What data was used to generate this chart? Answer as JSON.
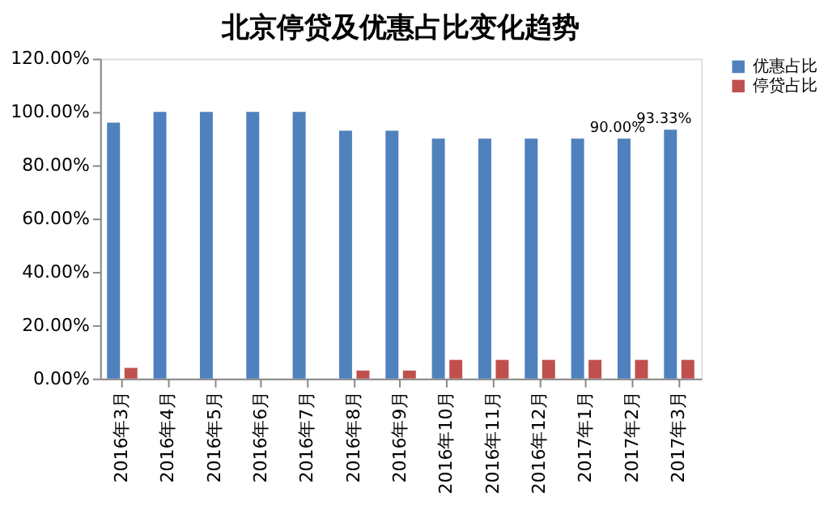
{
  "chart_data": {
    "type": "bar",
    "title": "北京停贷及优惠占比变化趋势",
    "categories": [
      "2016年3月",
      "2016年4月",
      "2016年5月",
      "2016年6月",
      "2016年7月",
      "2016年8月",
      "2016年9月",
      "2016年10月",
      "2016年11月",
      "2016年12月",
      "2017年1月",
      "2017年2月",
      "2017年3月"
    ],
    "series": [
      {
        "name": "优惠占比",
        "color": "#4f81bd",
        "values": [
          96,
          100,
          100,
          100,
          100,
          93,
          93,
          90,
          90,
          90,
          90,
          90,
          93.33
        ],
        "value_labels": [
          null,
          null,
          null,
          null,
          null,
          null,
          null,
          null,
          null,
          null,
          null,
          "90.00%",
          "93.33%"
        ]
      },
      {
        "name": "停贷占比",
        "color": "#c0504d",
        "values": [
          4,
          0,
          0,
          0,
          0,
          3,
          3,
          7,
          7,
          7,
          7,
          7,
          7
        ]
      }
    ],
    "ylim": [
      0,
      120
    ],
    "yticks": [
      {
        "value": 0,
        "label": "0.00%"
      },
      {
        "value": 20,
        "label": "20.00%"
      },
      {
        "value": 40,
        "label": "40.00%"
      },
      {
        "value": 60,
        "label": "60.00%"
      },
      {
        "value": 80,
        "label": "80.00%"
      },
      {
        "value": 100,
        "label": "100.00%"
      },
      {
        "value": 120,
        "label": "120.00%"
      }
    ],
    "grid": false,
    "legend": "right"
  }
}
